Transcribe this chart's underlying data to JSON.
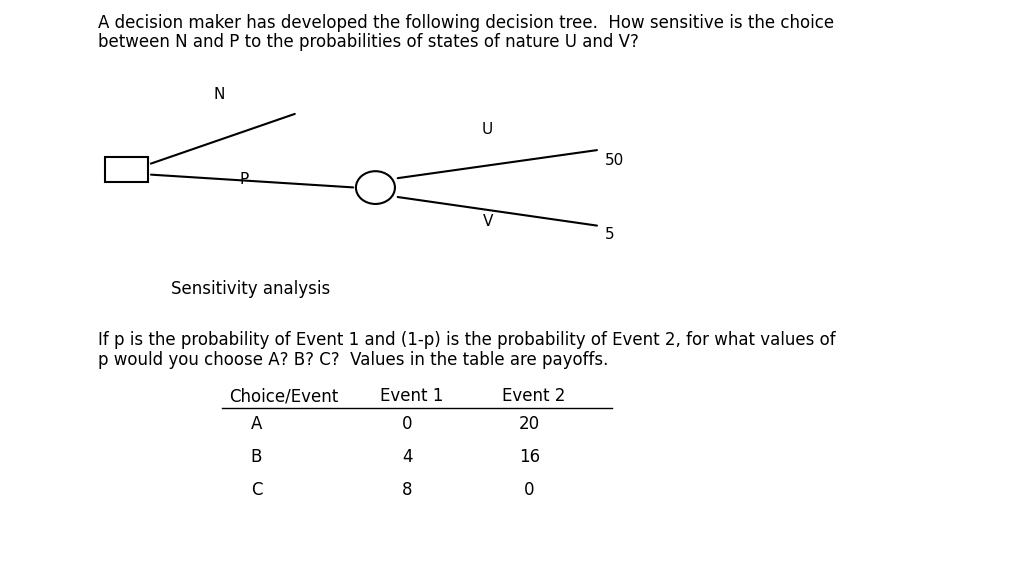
{
  "title_line1": "A decision maker has developed the following decision tree.  How sensitive is the choice",
  "title_line2": "between N and P to the probabilities of states of nature U and V?",
  "label_N": "N",
  "label_P": "P",
  "label_U": "U",
  "label_V": "V",
  "val_50": "50",
  "val_5": "5",
  "sensitivity_label": "Sensitivity analysis",
  "body_line1": "If p is the probability of Event 1 and (1-p) is the probability of Event 2, for what values of",
  "body_line2": "p would you choose A? B? C?  Values in the table are payoffs.",
  "table_header": [
    "Choice/Event",
    "Event 1",
    "Event 2"
  ],
  "table_rows": [
    [
      "A",
      "0",
      "20"
    ],
    [
      "B",
      "4",
      "16"
    ],
    [
      "C",
      "8",
      "0"
    ]
  ],
  "bg_color": "#ffffff",
  "text_color": "#000000",
  "line_color": "#000000",
  "font_size_body": 12,
  "font_size_title": 12,
  "font_size_tree": 11,
  "font_size_table": 12
}
